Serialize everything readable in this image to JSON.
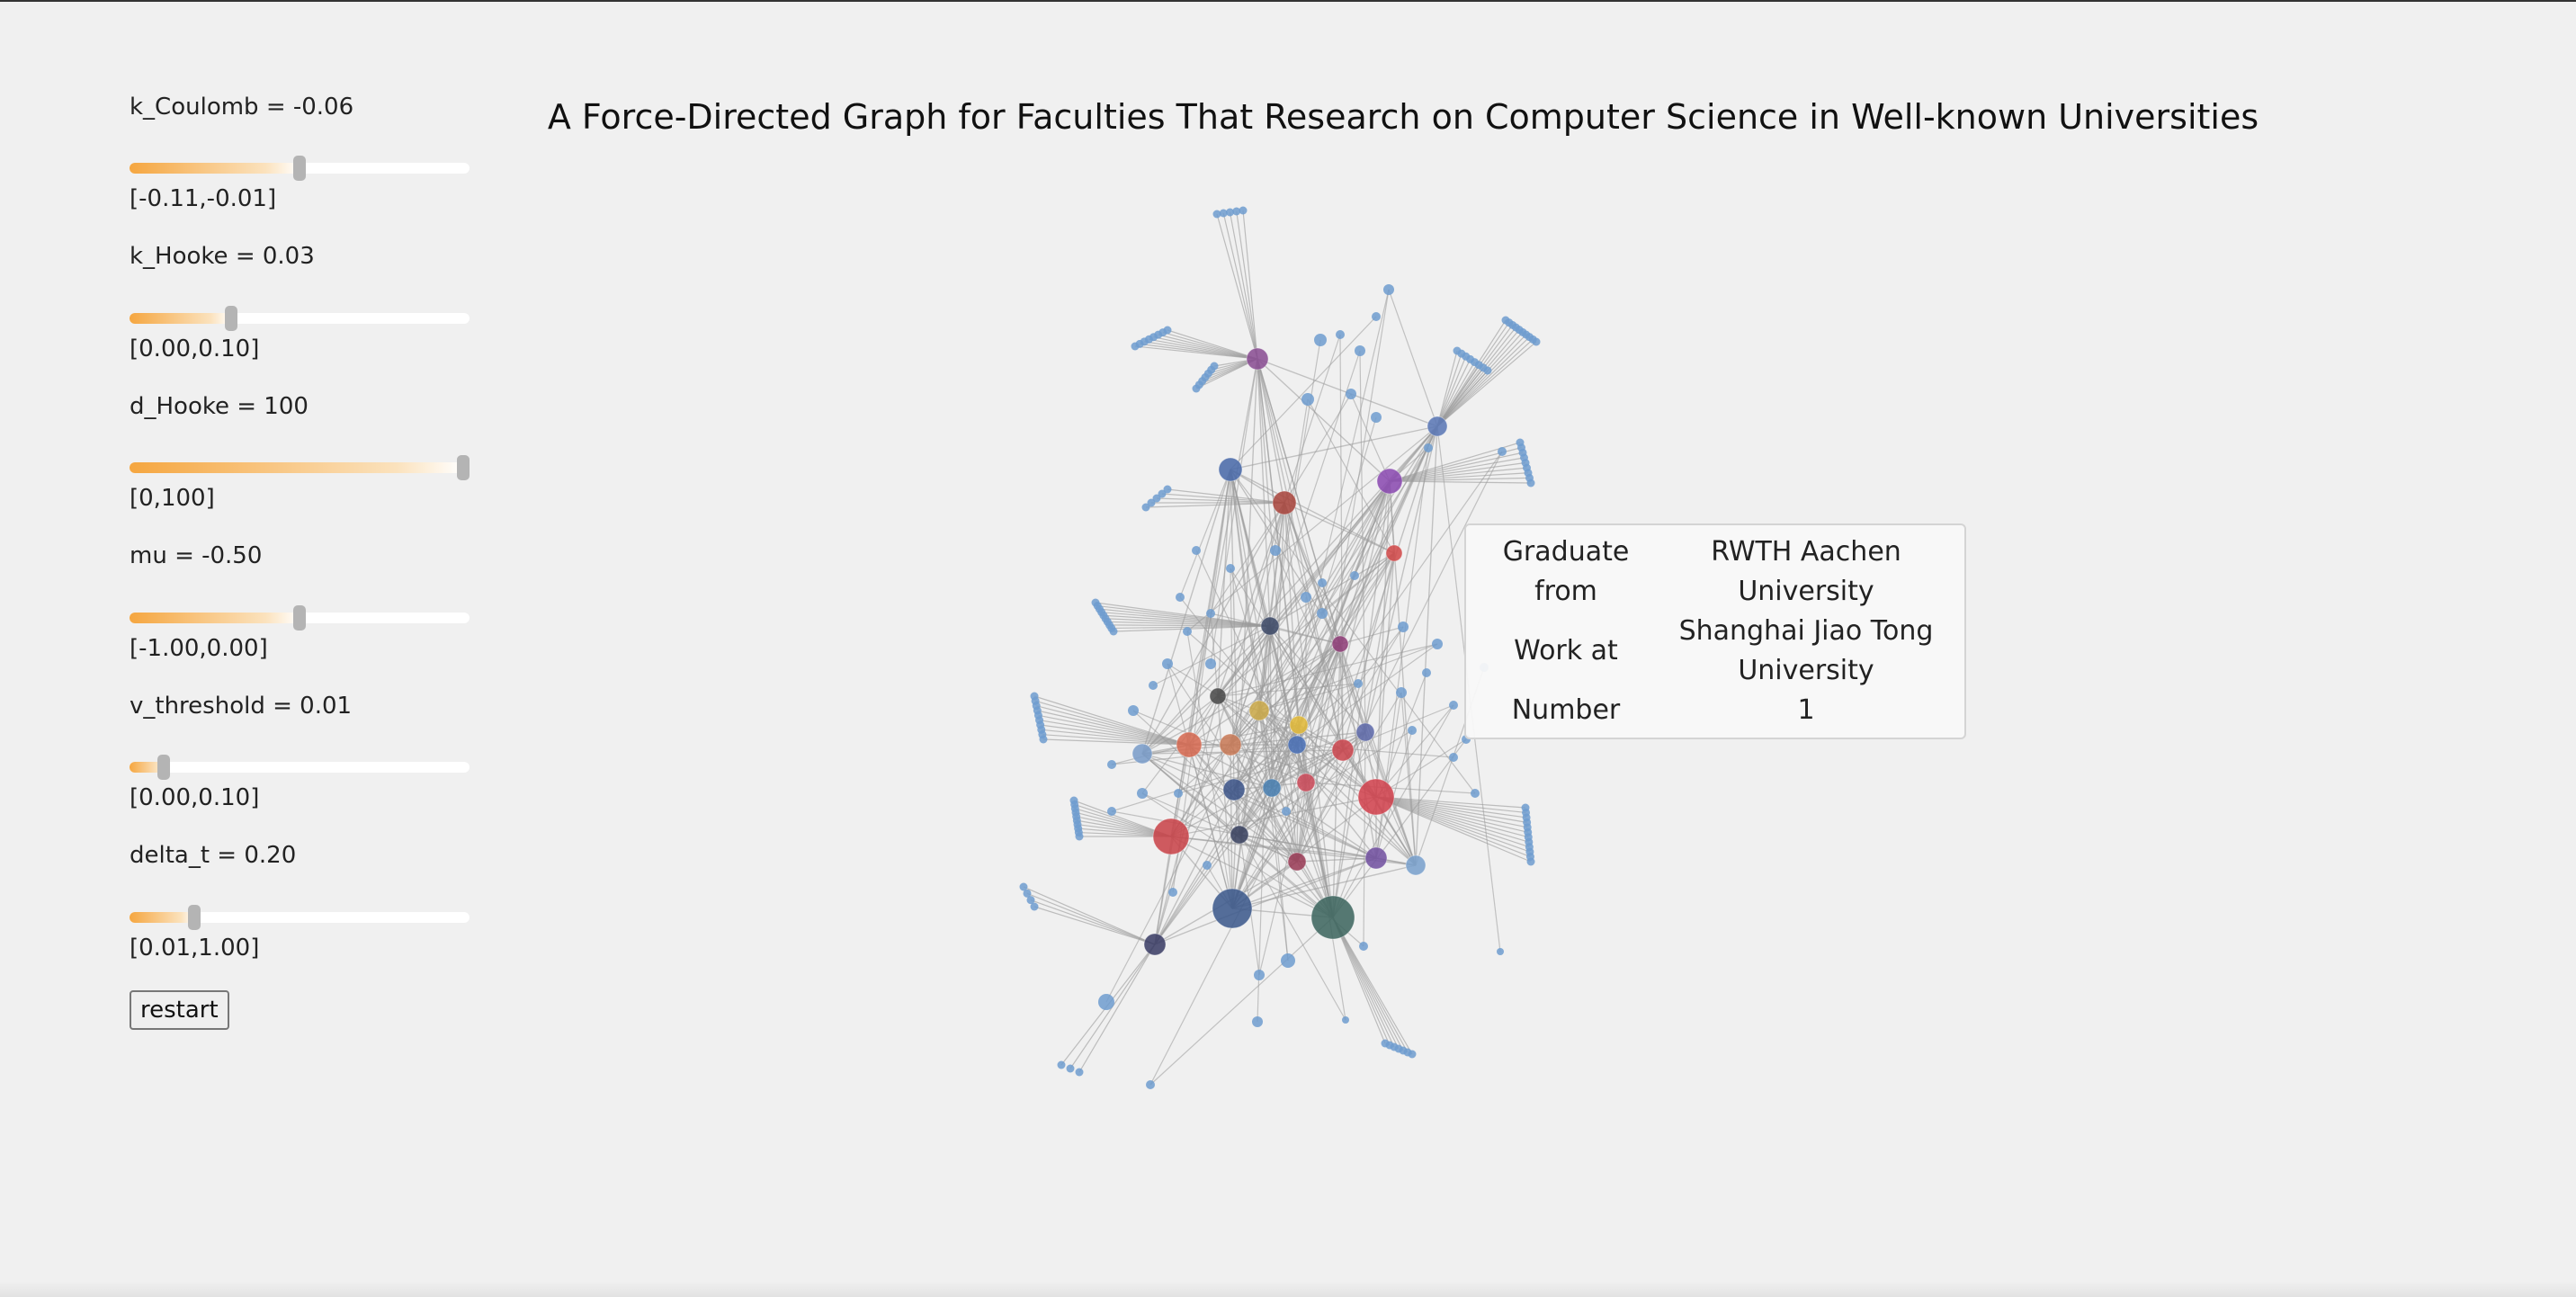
{
  "title": "A Force-Directed Graph for Faculties That Research on Computer Science in Well-known Universities",
  "controls": [
    {
      "label": "k_Coulomb = -0.06",
      "range": "[-0.11,-0.01]",
      "value": 0.5
    },
    {
      "label": "k_Hooke = 0.03",
      "range": "[0.00,0.10]",
      "value": 0.3
    },
    {
      "label": "d_Hooke = 100",
      "range": "[0,100]",
      "value": 1.0
    },
    {
      "label": "mu = -0.50",
      "range": "[-1.00,0.00]",
      "value": 0.5
    },
    {
      "label": "v_threshold = 0.01",
      "range": "[0.00,0.10]",
      "value": 0.1
    },
    {
      "label": "delta_t = 0.20",
      "range": "[0.01,1.00]",
      "value": 0.19
    }
  ],
  "restart_label": "restart",
  "tooltip": {
    "rows": [
      {
        "key": "Graduate from",
        "value": "RWTH Aachen University"
      },
      {
        "key": "Work at",
        "value": "Shanghai Jiao Tong University"
      },
      {
        "key": "Number",
        "value": "1"
      }
    ]
  },
  "colors": {
    "background": "#f0f0f0",
    "slider_fill": "#f5a640",
    "slider_thumb": "#b4b4b4",
    "leaf_node": "#6f9ccf",
    "edge": "#9a9a9a"
  }
}
